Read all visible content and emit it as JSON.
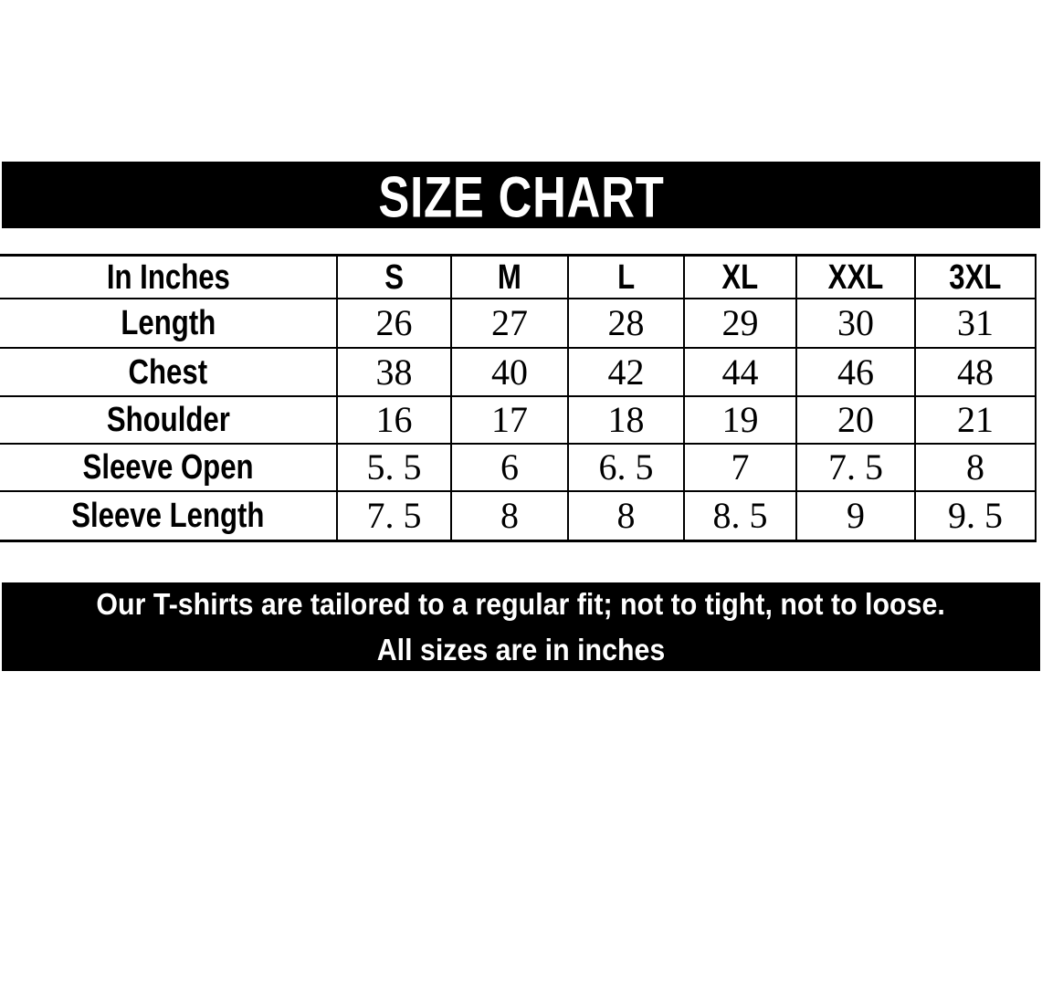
{
  "banner": {
    "title": "SIZE CHART"
  },
  "table": {
    "header": [
      "In Inches",
      "S",
      "M",
      "L",
      "XL",
      "XXL",
      "3XL"
    ],
    "rows": [
      {
        "label": "Length",
        "values": [
          "26",
          "27",
          "28",
          "29",
          "30",
          "31"
        ]
      },
      {
        "label": "Chest",
        "values": [
          "38",
          "40",
          "42",
          "44",
          "46",
          "48"
        ]
      },
      {
        "label": "Shoulder",
        "values": [
          "16",
          "17",
          "18",
          "19",
          "20",
          "21"
        ]
      },
      {
        "label": "Sleeve Open",
        "values": [
          "5. 5",
          "6",
          "6. 5",
          "7",
          "7. 5",
          "8"
        ]
      },
      {
        "label": "Sleeve Length",
        "values": [
          "7. 5",
          "8",
          "8",
          "8. 5",
          "9",
          "9. 5"
        ]
      }
    ]
  },
  "footer": {
    "line1": "Our T-shirts are tailored to a regular fit; not to tight, not to loose.",
    "line2": "All sizes are in inches"
  },
  "colors": {
    "banner_bg": "#000000",
    "banner_text": "#ffffff",
    "table_bg": "#ffffff",
    "table_text": "#000000",
    "border": "#000000",
    "footer_bg": "#000000",
    "footer_text": "#ffffff"
  },
  "chart_data": {
    "type": "table",
    "title": "SIZE CHART",
    "columns": [
      "In Inches",
      "S",
      "M",
      "L",
      "XL",
      "XXL",
      "3XL"
    ],
    "rows": [
      [
        "Length",
        26,
        27,
        28,
        29,
        30,
        31
      ],
      [
        "Chest",
        38,
        40,
        42,
        44,
        46,
        48
      ],
      [
        "Shoulder",
        16,
        17,
        18,
        19,
        20,
        21
      ],
      [
        "Sleeve Open",
        5.5,
        6,
        6.5,
        7,
        7.5,
        8
      ],
      [
        "Sleeve Length",
        7.5,
        8,
        8,
        8.5,
        9,
        9.5
      ]
    ],
    "notes": [
      "Our T-shirts are tailored to a regular fit; not to tight, not to loose.",
      "All sizes are in inches"
    ],
    "layout": "title banner on black, 7-column bordered table (no left outer border), black note bar below"
  }
}
